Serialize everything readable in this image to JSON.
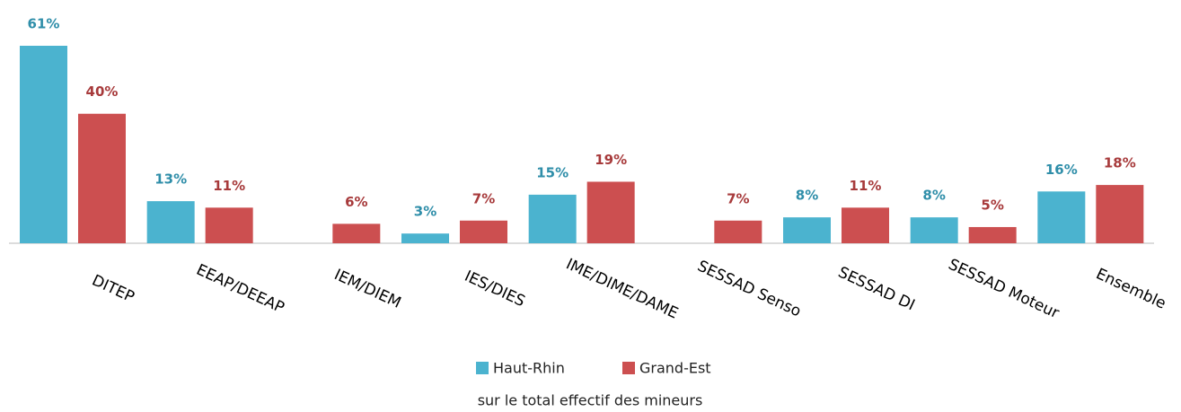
{
  "chart_data": {
    "type": "bar",
    "subtitle": "sur le total effectif des mineurs",
    "categories": [
      "DITEP",
      "EEAP/DEEAP",
      "IEM/DIEM",
      "IES/DIES",
      "IME/DIME/DAME",
      "SESSAD Senso",
      "SESSAD DI",
      "SESSAD Moteur",
      "Ensemble"
    ],
    "series": [
      {
        "name": "Haut-Rhin",
        "color": "#4bb3cf",
        "values": [
          61,
          13,
          null,
          3,
          15,
          null,
          8,
          8,
          16
        ],
        "value_labels": [
          "61%",
          "13%",
          null,
          "3%",
          "15%",
          null,
          "8%",
          "8%",
          "16%"
        ]
      },
      {
        "name": "Grand-Est",
        "color": "#cc4f50",
        "values": [
          40,
          11,
          6,
          7,
          19,
          7,
          11,
          5,
          18
        ],
        "value_labels": [
          "40%",
          "11%",
          "6%",
          "7%",
          "19%",
          "7%",
          "11%",
          "5%",
          "18%"
        ]
      }
    ],
    "legend": "bottom"
  }
}
